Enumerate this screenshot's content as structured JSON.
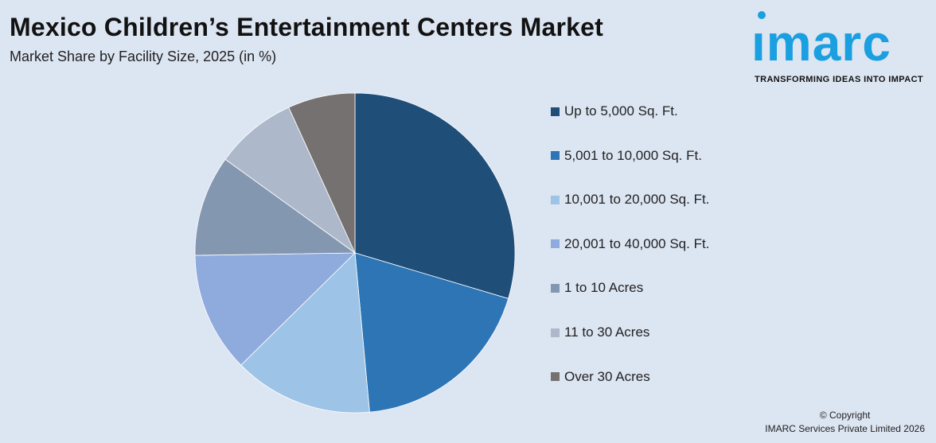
{
  "title": "Mexico Children’s Entertainment Centers Market",
  "subtitle": "Market Share by Facility Size, 2025 (in %)",
  "logo": {
    "word": "ımarc",
    "tagline": "TRANSFORMING IDEAS INTO IMPACT",
    "color": "#1a9fe0"
  },
  "copyright": {
    "line1": "© Copyright",
    "line2": "IMARC Services Private Limited 2026"
  },
  "chart_data": {
    "type": "pie",
    "categories": [
      "Up to 5,000 Sq. Ft.",
      "5,001 to 10,000 Sq. Ft.",
      "10,001 to 20,000 Sq. Ft.",
      "20,001 to 40,000 Sq. Ft.",
      "1 to 10 Acres",
      "11 to 30 Acres",
      "Over 30 Acres"
    ],
    "values": [
      30.5,
      19.5,
      14.5,
      12.5,
      10.5,
      8.5,
      7.0
    ],
    "colors": [
      "#1f4e79",
      "#2e75b6",
      "#9dc3e6",
      "#8faadc",
      "#8497b0",
      "#adb9ca",
      "#767171"
    ],
    "start_angle_deg": 0,
    "direction": "clockwise",
    "legend_position": "right"
  }
}
